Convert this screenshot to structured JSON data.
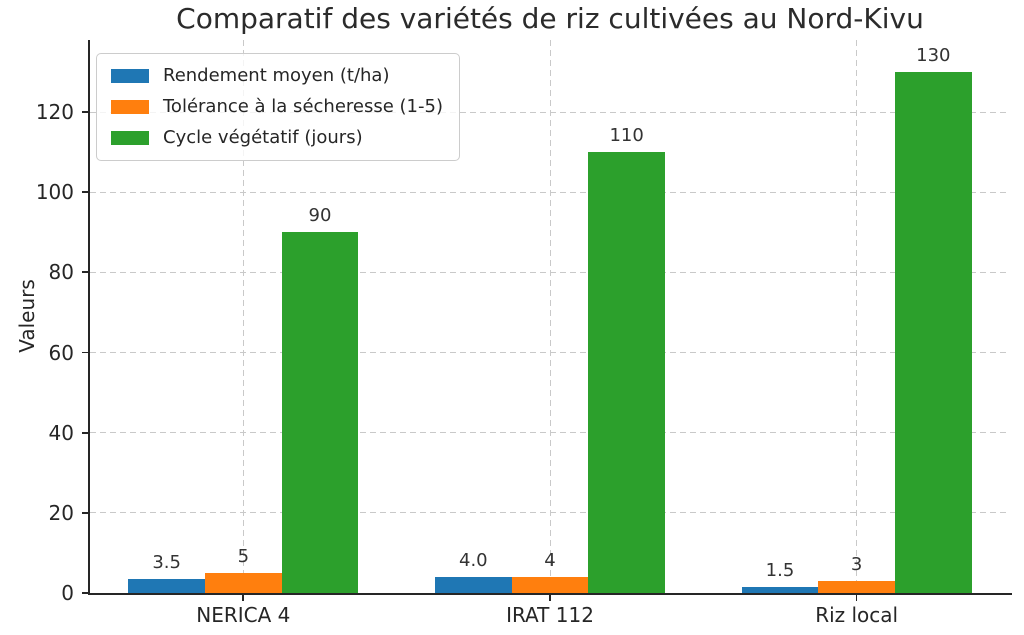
{
  "chart_data": {
    "type": "bar",
    "title": "Comparatif des variétés de riz cultivées au Nord-Kivu",
    "xlabel": "",
    "ylabel": "Valeurs",
    "categories": [
      "NERICA 4",
      "IRAT 112",
      "Riz local"
    ],
    "series": [
      {
        "name": "Rendement moyen (t/ha)",
        "color": "#1f77b4",
        "values": [
          3.5,
          4.0,
          1.5
        ],
        "labels": [
          "3.5",
          "4.0",
          "1.5"
        ]
      },
      {
        "name": "Tolérance à la sécheresse (1-5)",
        "color": "#ff7f0e",
        "values": [
          5,
          4,
          3
        ],
        "labels": [
          "5",
          "4",
          "3"
        ]
      },
      {
        "name": "Cycle végétatif (jours)",
        "color": "#2ca02c",
        "values": [
          90,
          110,
          130
        ],
        "labels": [
          "90",
          "110",
          "130"
        ]
      }
    ],
    "ylim": [
      0,
      138
    ],
    "yticks": [
      0,
      20,
      40,
      60,
      80,
      100,
      120
    ],
    "grid": "dashed-both-axes",
    "legend_position": "upper left",
    "colors": {
      "axis": "#262626",
      "text": "#262626",
      "annotation": "#333333",
      "grid": "#c9c9c9",
      "legend_border": "#cccccc",
      "background": "#ffffff"
    }
  }
}
